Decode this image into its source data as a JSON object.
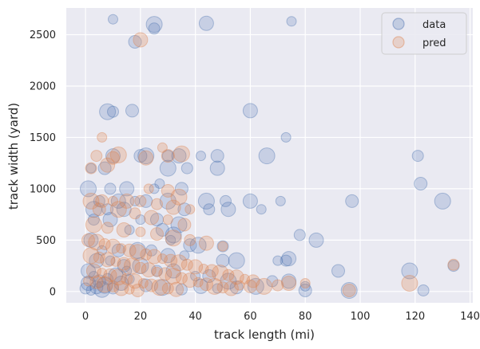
{
  "chart_data": {
    "type": "scatter",
    "title": "",
    "xlabel": "track length (mi)",
    "ylabel": "track width (yard)",
    "xlim": [
      -7,
      141
    ],
    "ylim": [
      -110,
      2760
    ],
    "xticks": [
      0,
      20,
      40,
      60,
      80,
      100,
      120,
      140
    ],
    "yticks": [
      0,
      500,
      1000,
      1500,
      2000,
      2500
    ],
    "grid": true,
    "legend": "top-right",
    "colors": {
      "plot_bg": "#eaeaf2",
      "grid": "#ffffff",
      "data": "#4c72b0",
      "pred": "#dd8452"
    },
    "series": [
      {
        "name": "data",
        "color": "#4c72b0",
        "points": [
          [
            10,
            2650
          ],
          [
            18,
            2430
          ],
          [
            25,
            2600
          ],
          [
            25,
            2560
          ],
          [
            44,
            2610
          ],
          [
            75,
            2630
          ],
          [
            17,
            1760
          ],
          [
            8,
            1750
          ],
          [
            10,
            1750
          ],
          [
            60,
            1760
          ],
          [
            73,
            1500
          ],
          [
            20,
            1320
          ],
          [
            22,
            1320
          ],
          [
            30,
            1320
          ],
          [
            34,
            1320
          ],
          [
            42,
            1320
          ],
          [
            48,
            1320
          ],
          [
            66,
            1320
          ],
          [
            121,
            1320
          ],
          [
            10,
            1320
          ],
          [
            2,
            1200
          ],
          [
            7,
            1200
          ],
          [
            30,
            1200
          ],
          [
            37,
            1200
          ],
          [
            48,
            1200
          ],
          [
            27,
            1050
          ],
          [
            122,
            1050
          ],
          [
            1,
            1000
          ],
          [
            9,
            1000
          ],
          [
            15,
            1000
          ],
          [
            25,
            1000
          ],
          [
            35,
            1000
          ],
          [
            44,
            880
          ],
          [
            51,
            880
          ],
          [
            60,
            880
          ],
          [
            71,
            880
          ],
          [
            97,
            880
          ],
          [
            130,
            880
          ],
          [
            5,
            880
          ],
          [
            12,
            880
          ],
          [
            18,
            880
          ],
          [
            22,
            880
          ],
          [
            30,
            880
          ],
          [
            45,
            800
          ],
          [
            52,
            800
          ],
          [
            64,
            800
          ],
          [
            36,
            800
          ],
          [
            3,
            800
          ],
          [
            8,
            800
          ],
          [
            14,
            800
          ],
          [
            20,
            700
          ],
          [
            26,
            700
          ],
          [
            34,
            650
          ],
          [
            3,
            700
          ],
          [
            9,
            700
          ],
          [
            16,
            600
          ],
          [
            28,
            600
          ],
          [
            32,
            550
          ],
          [
            78,
            550
          ],
          [
            84,
            500
          ],
          [
            31,
            500
          ],
          [
            38,
            450
          ],
          [
            41,
            450
          ],
          [
            50,
            440
          ],
          [
            2,
            500
          ],
          [
            6,
            400
          ],
          [
            12,
            400
          ],
          [
            19,
            400
          ],
          [
            24,
            400
          ],
          [
            30,
            350
          ],
          [
            36,
            350
          ],
          [
            50,
            300
          ],
          [
            55,
            300
          ],
          [
            73,
            300
          ],
          [
            74,
            320
          ],
          [
            70,
            300
          ],
          [
            92,
            200
          ],
          [
            118,
            200
          ],
          [
            134,
            250
          ],
          [
            4,
            300
          ],
          [
            9,
            300
          ],
          [
            14,
            250
          ],
          [
            20,
            250
          ],
          [
            26,
            200
          ],
          [
            32,
            200
          ],
          [
            40,
            150
          ],
          [
            45,
            150
          ],
          [
            52,
            100
          ],
          [
            68,
            100
          ],
          [
            74,
            100
          ],
          [
            80,
            50
          ],
          [
            80,
            10
          ],
          [
            96,
            10
          ],
          [
            123,
            10
          ],
          [
            1,
            200
          ],
          [
            3,
            150
          ],
          [
            5,
            100
          ],
          [
            7,
            60
          ],
          [
            10,
            30
          ],
          [
            13,
            80
          ],
          [
            16,
            120
          ],
          [
            22,
            60
          ],
          [
            28,
            40
          ],
          [
            35,
            20
          ],
          [
            42,
            50
          ],
          [
            48,
            30
          ],
          [
            55,
            40
          ],
          [
            62,
            50
          ],
          [
            0,
            30
          ],
          [
            1,
            80
          ],
          [
            2,
            10
          ],
          [
            4,
            40
          ],
          [
            6,
            20
          ],
          [
            8,
            120
          ],
          [
            11,
            160
          ],
          [
            15,
            200
          ]
        ]
      },
      {
        "name": "pred",
        "color": "#dd8452",
        "points": [
          [
            20,
            2450
          ],
          [
            6,
            1500
          ],
          [
            10,
            1300
          ],
          [
            12,
            1330
          ],
          [
            4,
            1320
          ],
          [
            22,
            1300
          ],
          [
            28,
            1400
          ],
          [
            30,
            1320
          ],
          [
            35,
            1340
          ],
          [
            2,
            1200
          ],
          [
            8,
            1230
          ],
          [
            23,
            1000
          ],
          [
            30,
            980
          ],
          [
            34,
            920
          ],
          [
            20,
            880
          ],
          [
            15,
            880
          ],
          [
            10,
            880
          ],
          [
            6,
            880
          ],
          [
            2,
            880
          ],
          [
            26,
            850
          ],
          [
            32,
            820
          ],
          [
            38,
            800
          ],
          [
            5,
            800
          ],
          [
            12,
            800
          ],
          [
            18,
            760
          ],
          [
            24,
            720
          ],
          [
            30,
            700
          ],
          [
            36,
            650
          ],
          [
            3,
            650
          ],
          [
            8,
            620
          ],
          [
            14,
            600
          ],
          [
            20,
            580
          ],
          [
            26,
            560
          ],
          [
            32,
            520
          ],
          [
            38,
            500
          ],
          [
            44,
            470
          ],
          [
            50,
            440
          ],
          [
            1,
            500
          ],
          [
            4,
            480
          ],
          [
            7,
            460
          ],
          [
            10,
            440
          ],
          [
            13,
            420
          ],
          [
            16,
            400
          ],
          [
            19,
            380
          ],
          [
            22,
            360
          ],
          [
            25,
            340
          ],
          [
            28,
            320
          ],
          [
            31,
            300
          ],
          [
            34,
            280
          ],
          [
            37,
            260
          ],
          [
            40,
            240
          ],
          [
            43,
            220
          ],
          [
            46,
            200
          ],
          [
            49,
            180
          ],
          [
            52,
            160
          ],
          [
            55,
            140
          ],
          [
            58,
            120
          ],
          [
            61,
            100
          ],
          [
            2,
            350
          ],
          [
            5,
            330
          ],
          [
            8,
            310
          ],
          [
            11,
            290
          ],
          [
            14,
            270
          ],
          [
            17,
            250
          ],
          [
            20,
            230
          ],
          [
            23,
            210
          ],
          [
            26,
            190
          ],
          [
            29,
            170
          ],
          [
            32,
            150
          ],
          [
            35,
            130
          ],
          [
            38,
            110
          ],
          [
            41,
            90
          ],
          [
            44,
            70
          ],
          [
            47,
            50
          ],
          [
            50,
            40
          ],
          [
            53,
            30
          ],
          [
            56,
            60
          ],
          [
            60,
            50
          ],
          [
            65,
            50
          ],
          [
            70,
            60
          ],
          [
            74,
            80
          ],
          [
            80,
            80
          ],
          [
            96,
            10
          ],
          [
            118,
            80
          ],
          [
            134,
            260
          ],
          [
            3,
            200
          ],
          [
            6,
            180
          ],
          [
            9,
            160
          ],
          [
            12,
            140
          ],
          [
            15,
            120
          ],
          [
            18,
            100
          ],
          [
            21,
            80
          ],
          [
            24,
            60
          ],
          [
            27,
            40
          ],
          [
            30,
            30
          ],
          [
            33,
            20
          ],
          [
            1,
            100
          ],
          [
            4,
            90
          ],
          [
            7,
            70
          ],
          [
            10,
            50
          ],
          [
            13,
            30
          ],
          [
            16,
            20
          ],
          [
            19,
            10
          ]
        ]
      }
    ]
  }
}
